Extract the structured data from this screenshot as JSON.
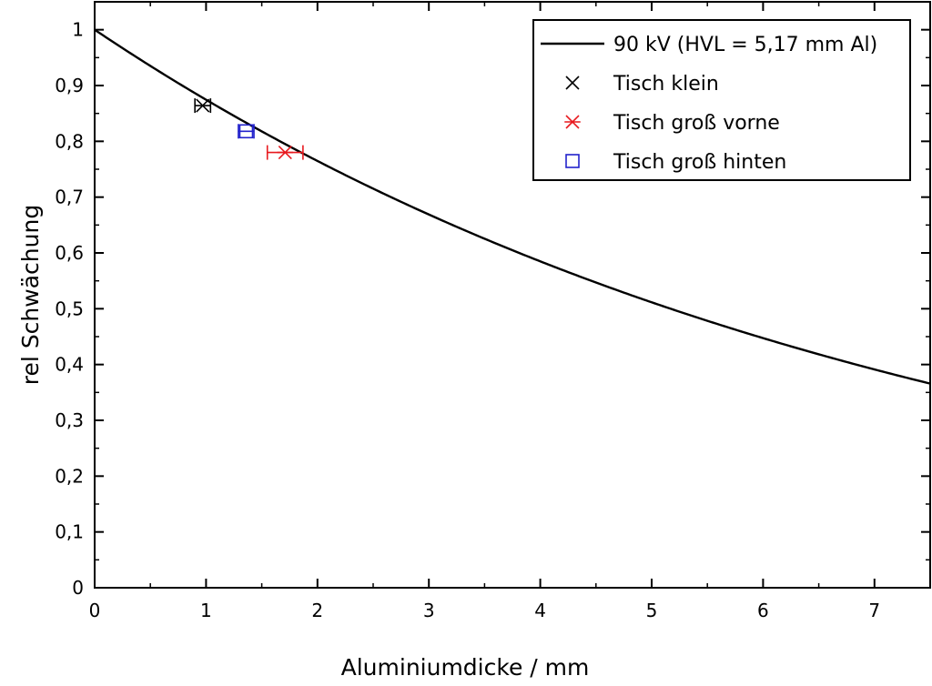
{
  "chart_data": {
    "type": "scatter",
    "xlabel": "Aluminiumdicke / mm",
    "ylabel": "rel Schwächung",
    "xlim": [
      0,
      7.5
    ],
    "ylim": [
      0,
      1.05
    ],
    "x_ticks": [
      0,
      1,
      2,
      3,
      4,
      5,
      6,
      7
    ],
    "x_tick_labels": [
      "0",
      "1",
      "2",
      "3",
      "4",
      "5",
      "6",
      "7"
    ],
    "y_ticks": [
      0,
      0.1,
      0.2,
      0.3,
      0.4,
      0.5,
      0.6,
      0.7,
      0.8,
      0.9,
      1
    ],
    "y_tick_labels": [
      "0",
      "0,1",
      "0,2",
      "0,3",
      "0,4",
      "0,5",
      "0,6",
      "0,7",
      "0,8",
      "0,9",
      "1"
    ],
    "grid": false,
    "legend_position": "top-right",
    "curve": {
      "name": "90 kV (HVL = 5,17 mm Al)",
      "hvl": 5.17,
      "color": "#000000"
    },
    "series": [
      {
        "name": "Tisch klein",
        "marker": "x",
        "color": "#000000",
        "points": [
          {
            "x": 0.97,
            "y": 0.864,
            "xerr": 0.07
          }
        ]
      },
      {
        "name": "Tisch groß vorne",
        "marker": "asterisk",
        "color": "#e8191e",
        "points": [
          {
            "x": 1.71,
            "y": 0.78,
            "xerr": 0.16
          }
        ]
      },
      {
        "name": "Tisch groß hinten",
        "marker": "square",
        "color": "#2222cc",
        "points": [
          {
            "x": 1.36,
            "y": 0.818,
            "xerr": 0.07
          }
        ]
      }
    ]
  }
}
